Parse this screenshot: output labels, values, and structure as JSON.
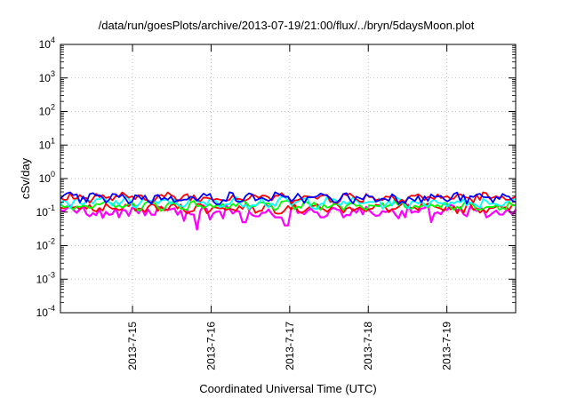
{
  "chart_data": {
    "type": "line",
    "title": "/data/run/goesPlots/archive/2013-07-19/21:00/flux/../bryn/5daysMoon.plot",
    "xlabel": "Coordinated Universal Time (UTC)",
    "ylabel": "cSv/day",
    "yscale": "log",
    "ylim": [
      0.0001,
      10000
    ],
    "xlim": [
      "2013-07-14 02:00",
      "2013-07-19 21:00"
    ],
    "grid": true,
    "x_ticks": [
      {
        "value": "2013-07-15 00:00",
        "label": "2013-7-15"
      },
      {
        "value": "2013-07-16 00:00",
        "label": "2013-7-16"
      },
      {
        "value": "2013-07-17 00:00",
        "label": "2013-7-17"
      },
      {
        "value": "2013-07-18 00:00",
        "label": "2013-7-18"
      },
      {
        "value": "2013-07-19 00:00",
        "label": "2013-7-19"
      }
    ],
    "y_ticks": [
      {
        "value": 0.0001,
        "base": "10",
        "exp": "-4"
      },
      {
        "value": 0.001,
        "base": "10",
        "exp": "-3"
      },
      {
        "value": 0.01,
        "base": "10",
        "exp": "-2"
      },
      {
        "value": 0.1,
        "base": "10",
        "exp": "-1"
      },
      {
        "value": 1,
        "base": "10",
        "exp": "0"
      },
      {
        "value": 10,
        "base": "10",
        "exp": "1"
      },
      {
        "value": 100,
        "base": "10",
        "exp": "2"
      },
      {
        "value": 1000,
        "base": "10",
        "exp": "3"
      },
      {
        "value": 10000,
        "base": "10",
        "exp": "4"
      }
    ],
    "series": [
      {
        "color": "#ff00ff",
        "base": 0.11,
        "jitter": 0.35,
        "dips": [
          {
            "x": "2013-07-14 11:00",
            "y": 0.075
          },
          {
            "x": "2013-07-14 20:00",
            "y": 0.07
          },
          {
            "x": "2013-07-15 04:00",
            "y": 0.08
          },
          {
            "x": "2013-07-15 16:00",
            "y": 0.055
          },
          {
            "x": "2013-07-15 20:00",
            "y": 0.03
          },
          {
            "x": "2013-07-16 00:00",
            "y": 0.06
          },
          {
            "x": "2013-07-16 04:00",
            "y": 0.065
          },
          {
            "x": "2013-07-16 10:00",
            "y": 0.05
          },
          {
            "x": "2013-07-16 14:00",
            "y": 0.075
          },
          {
            "x": "2013-07-16 20:00",
            "y": 0.07
          },
          {
            "x": "2013-07-16 23:00",
            "y": 0.04
          },
          {
            "x": "2013-07-17 10:00",
            "y": 0.07
          },
          {
            "x": "2013-07-17 16:00",
            "y": 0.07
          },
          {
            "x": "2013-07-18 03:00",
            "y": 0.08
          },
          {
            "x": "2013-07-18 11:00",
            "y": 0.07
          },
          {
            "x": "2013-07-18 19:00",
            "y": 0.05
          },
          {
            "x": "2013-07-19 06:00",
            "y": 0.075
          },
          {
            "x": "2013-07-19 12:00",
            "y": 0.07
          }
        ]
      },
      {
        "color": "#ff0000",
        "base": 0.135,
        "jitter": 0.25,
        "dips": []
      },
      {
        "color": "#00ff00",
        "base": 0.16,
        "jitter": 0.22,
        "dips": []
      },
      {
        "color": "#00ffff",
        "base": 0.2,
        "jitter": 0.3,
        "dips": []
      },
      {
        "color": "#ff0000",
        "base": 0.28,
        "jitter": 0.28,
        "dips": []
      },
      {
        "color": "#0000ff",
        "base": 0.27,
        "jitter": 0.3,
        "dips": []
      }
    ]
  }
}
